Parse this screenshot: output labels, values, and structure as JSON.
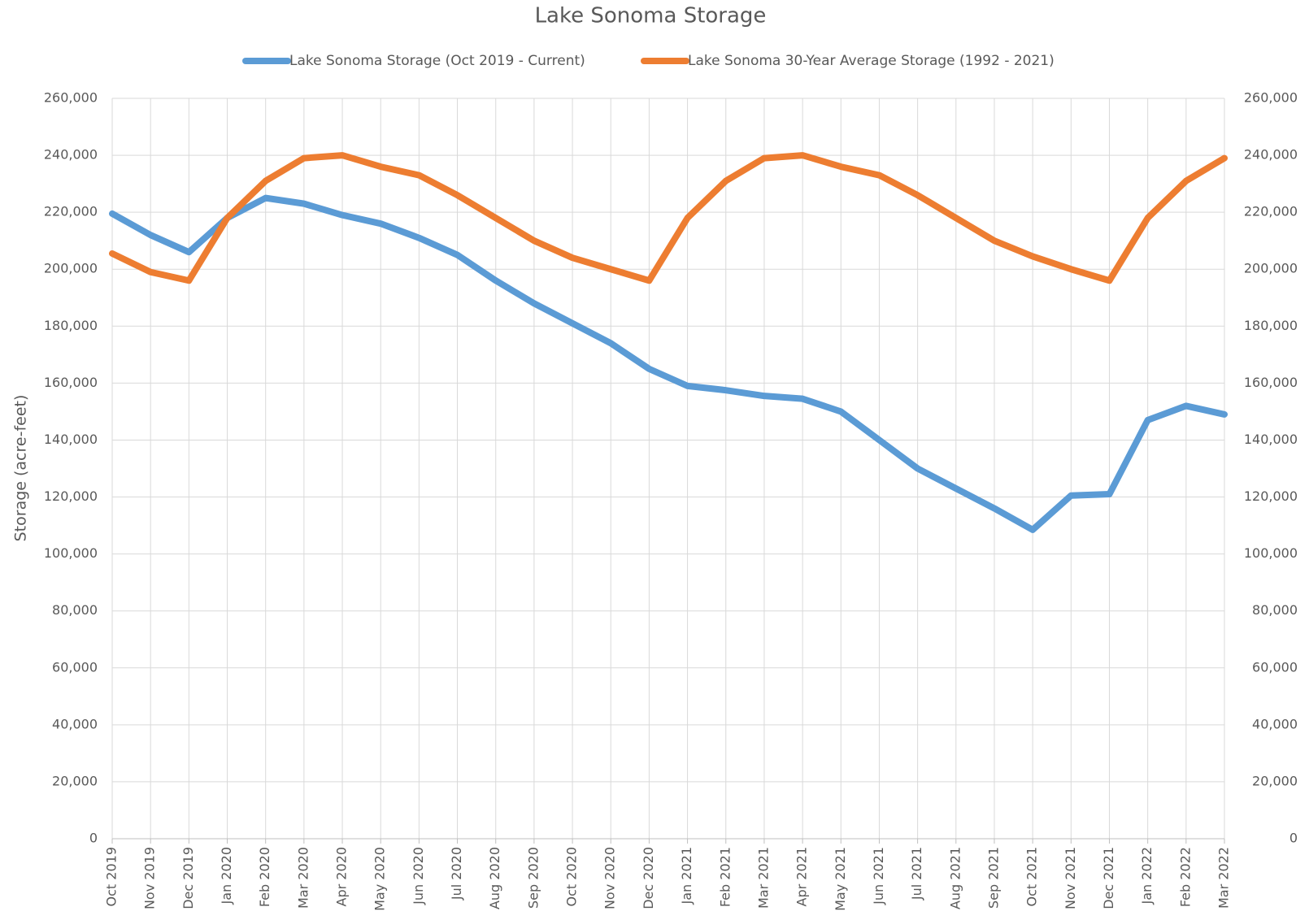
{
  "chart_data": {
    "type": "line",
    "title": "Lake Sonoma Storage",
    "y_label": "Storage (acre-feet)",
    "categories": [
      "Oct 2019",
      "Nov 2019",
      "Dec 2019",
      "Jan 2020",
      "Feb 2020",
      "Mar 2020",
      "Apr 2020",
      "May 2020",
      "Jun 2020",
      "Jul 2020",
      "Aug 2020",
      "Sep 2020",
      "Oct 2020",
      "Nov 2020",
      "Dec 2020",
      "Jan 2021",
      "Feb 2021",
      "Mar 2021",
      "Apr 2021",
      "May 2021",
      "Jun 2021",
      "Jul 2021",
      "Aug 2021",
      "Sep 2021",
      "Oct 2021",
      "Nov 2021",
      "Dec 2021",
      "Jan 2022",
      "Feb 2022",
      "Mar 2022"
    ],
    "series": [
      {
        "name": "Lake Sonoma Storage (Oct 2019 - Current)",
        "color": "#5b9bd5",
        "values": [
          219500,
          212000,
          206000,
          218000,
          225000,
          223000,
          219000,
          216000,
          211000,
          205000,
          196000,
          188000,
          181000,
          174000,
          165000,
          159000,
          157500,
          155500,
          154500,
          150000,
          140000,
          130000,
          123000,
          116000,
          108500,
          120500,
          121000,
          147000,
          152000,
          149000
        ]
      },
      {
        "name": "Lake Sonoma 30-Year Average Storage (1992 - 2021)",
        "color": "#ed7d31",
        "values": [
          205500,
          199000,
          196000,
          218000,
          231000,
          239000,
          240000,
          236000,
          233000,
          226000,
          218000,
          210000,
          204000,
          200000,
          196000,
          218000,
          231000,
          239000,
          240000,
          236000,
          233000,
          226000,
          218000,
          210000,
          204500,
          200000,
          196000,
          218000,
          231000,
          239000
        ]
      }
    ],
    "ylim": [
      0,
      260000
    ],
    "yticks": [
      {
        "value": 0,
        "label": "0"
      },
      {
        "value": 20000,
        "label": "20,000"
      },
      {
        "value": 40000,
        "label": "40,000"
      },
      {
        "value": 60000,
        "label": "60,000"
      },
      {
        "value": 80000,
        "label": "80,000"
      },
      {
        "value": 100000,
        "label": "100,000"
      },
      {
        "value": 120000,
        "label": "120,000"
      },
      {
        "value": 140000,
        "label": "140,000"
      },
      {
        "value": 160000,
        "label": "160,000"
      },
      {
        "value": 180000,
        "label": "180,000"
      },
      {
        "value": 200000,
        "label": "200,000"
      },
      {
        "value": 220000,
        "label": "220,000"
      },
      {
        "value": 240000,
        "label": "240,000"
      },
      {
        "value": 260000,
        "label": "260,000"
      }
    ],
    "y2lim": [
      0,
      260000
    ],
    "y2ticks": [
      {
        "value": 0,
        "label": "0"
      },
      {
        "value": 20000,
        "label": "20,000"
      },
      {
        "value": 40000,
        "label": "40,000"
      },
      {
        "value": 60000,
        "label": "60,000"
      },
      {
        "value": 80000,
        "label": "80,000"
      },
      {
        "value": 100000,
        "label": "100,000"
      },
      {
        "value": 120000,
        "label": "120,000"
      },
      {
        "value": 140000,
        "label": "140,000"
      },
      {
        "value": 160000,
        "label": "160,000"
      },
      {
        "value": 180000,
        "label": "180,000"
      },
      {
        "value": 200000,
        "label": "200,000"
      },
      {
        "value": 220000,
        "label": "220,000"
      },
      {
        "value": 240000,
        "label": "240,000"
      },
      {
        "value": 260000,
        "label": "260,000"
      }
    ],
    "grid": true,
    "legend": "top"
  }
}
